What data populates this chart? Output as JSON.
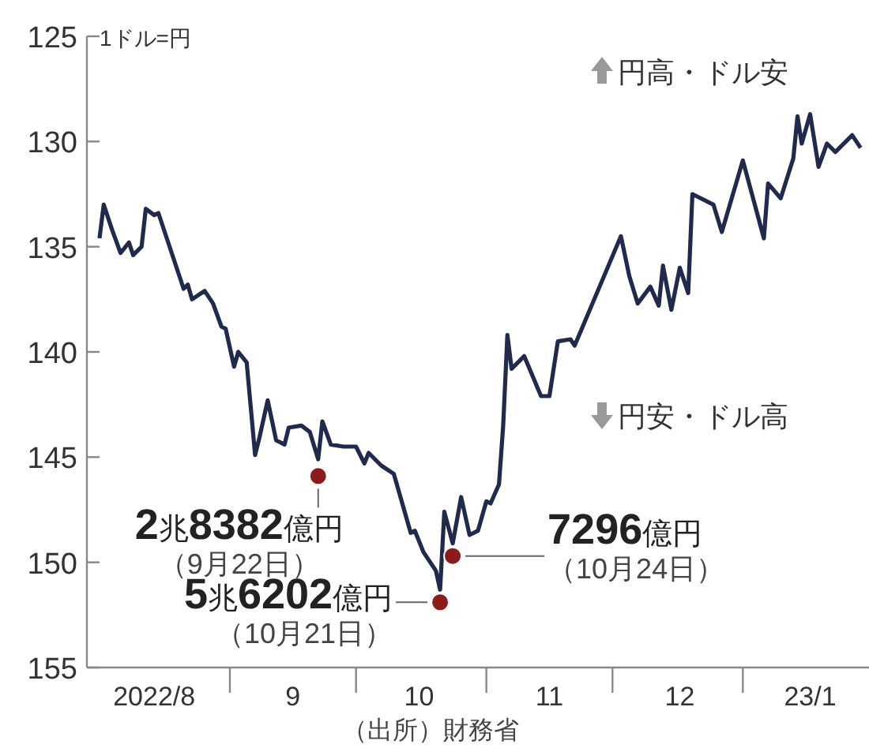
{
  "chart_data": {
    "type": "line",
    "ylabel": "1ドル=円",
    "xlim": [
      "2022-07-29",
      "2023-01-31"
    ],
    "ylim": [
      155,
      125
    ],
    "yticks": [
      125,
      130,
      135,
      140,
      145,
      150,
      155
    ],
    "xticks": [
      {
        "value": "2022-08-14",
        "label": "2022/8"
      },
      {
        "value": "2022-09-01",
        "label": null
      },
      {
        "value": "2022-09-16",
        "label": "9"
      },
      {
        "value": "2022-10-01",
        "label": null
      },
      {
        "value": "2022-10-16",
        "label": "10"
      },
      {
        "value": "2022-11-01",
        "label": null
      },
      {
        "value": "2022-11-16",
        "label": "11"
      },
      {
        "value": "2022-12-01",
        "label": null
      },
      {
        "value": "2022-12-17",
        "label": "12"
      },
      {
        "value": "2023-01-01",
        "label": null
      },
      {
        "value": "2023-01-17",
        "label": "23/1"
      }
    ],
    "grid": false,
    "series": [
      {
        "color": "#1f2a4d",
        "marker": "none",
        "line_style": "solid",
        "x": [
          "2022-08-01",
          "2022-08-02",
          "2022-08-04",
          "2022-08-06",
          "2022-08-08",
          "2022-08-09",
          "2022-08-11",
          "2022-08-12",
          "2022-08-14",
          "2022-08-15",
          "2022-08-19",
          "2022-08-21",
          "2022-08-22",
          "2022-08-23",
          "2022-08-26",
          "2022-08-28",
          "2022-08-30",
          "2022-08-31",
          "2022-09-02",
          "2022-09-03",
          "2022-09-05",
          "2022-09-07",
          "2022-09-08",
          "2022-09-10",
          "2022-09-12",
          "2022-09-14",
          "2022-09-15",
          "2022-09-18",
          "2022-09-20",
          "2022-09-22",
          "2022-09-23",
          "2022-09-25",
          "2022-09-28",
          "2022-10-01",
          "2022-10-03",
          "2022-10-04",
          "2022-10-07",
          "2022-10-10",
          "2022-10-14",
          "2022-10-15",
          "2022-10-17",
          "2022-10-20",
          "2022-10-21",
          "2022-10-22",
          "2022-10-24",
          "2022-10-26",
          "2022-10-28",
          "2022-10-30",
          "2022-11-01",
          "2022-11-02",
          "2022-11-04",
          "2022-11-05",
          "2022-11-06",
          "2022-11-07",
          "2022-11-10",
          "2022-11-14",
          "2022-11-16",
          "2022-11-18",
          "2022-11-21",
          "2022-11-22",
          "2022-12-03",
          "2022-12-05",
          "2022-12-07",
          "2022-12-10",
          "2022-12-12",
          "2022-12-13",
          "2022-12-15",
          "2022-12-17",
          "2022-12-19",
          "2022-12-20",
          "2022-12-25",
          "2022-12-27",
          "2023-01-01",
          "2023-01-06",
          "2023-01-07",
          "2023-01-10",
          "2023-01-13",
          "2023-01-14",
          "2023-01-15",
          "2023-01-17",
          "2023-01-19",
          "2023-01-21",
          "2023-01-23",
          "2023-01-27",
          "2023-01-29"
        ],
        "values": [
          134.6,
          133.0,
          134.2,
          135.3,
          134.8,
          135.4,
          135.0,
          133.2,
          133.5,
          133.4,
          135.8,
          137.0,
          136.8,
          137.5,
          137.1,
          137.7,
          138.8,
          138.9,
          140.7,
          140.0,
          140.5,
          144.9,
          144.1,
          142.3,
          144.2,
          144.4,
          143.6,
          143.5,
          143.8,
          145.1,
          143.3,
          144.4,
          144.5,
          144.5,
          145.3,
          144.8,
          145.4,
          145.8,
          148.6,
          148.5,
          149.5,
          150.4,
          151.3,
          147.6,
          149.1,
          146.9,
          148.7,
          148.5,
          147.1,
          147.2,
          146.3,
          143.5,
          139.2,
          140.8,
          140.2,
          142.1,
          142.1,
          139.5,
          139.4,
          139.7,
          134.5,
          136.4,
          137.7,
          136.9,
          137.8,
          135.9,
          138.0,
          136.0,
          137.2,
          132.5,
          133.0,
          134.3,
          130.9,
          134.6,
          132.0,
          132.7,
          130.8,
          128.8,
          130.1,
          128.7,
          131.2,
          130.1,
          130.5,
          129.7,
          130.3
        ]
      },
      {
        "type": "scatter",
        "color": "#8b1c1c",
        "marker": "circle",
        "x": [
          "2022-09-22",
          "2022-10-21",
          "2022-10-24"
        ],
        "values": [
          145.9,
          151.9,
          149.7
        ]
      }
    ],
    "annotations": [
      {
        "text": "2兆8382億円",
        "x": "2022-09-22",
        "y": 145.9
      },
      {
        "text": "（9月22日）",
        "x": "2022-09-22",
        "y": 145.9
      },
      {
        "text": "5兆6202億円",
        "x": "2022-10-21",
        "y": 151.9
      },
      {
        "text": "（10月21日）",
        "x": "2022-10-21",
        "y": 151.9
      },
      {
        "text": "7296億円",
        "x": "2022-10-24",
        "y": 149.7
      },
      {
        "text": "（10月24日）",
        "x": "2022-10-24",
        "y": 149.7
      },
      "円高・ドル安",
      "円安・ドル高",
      "（出所）財務省"
    ]
  }
}
